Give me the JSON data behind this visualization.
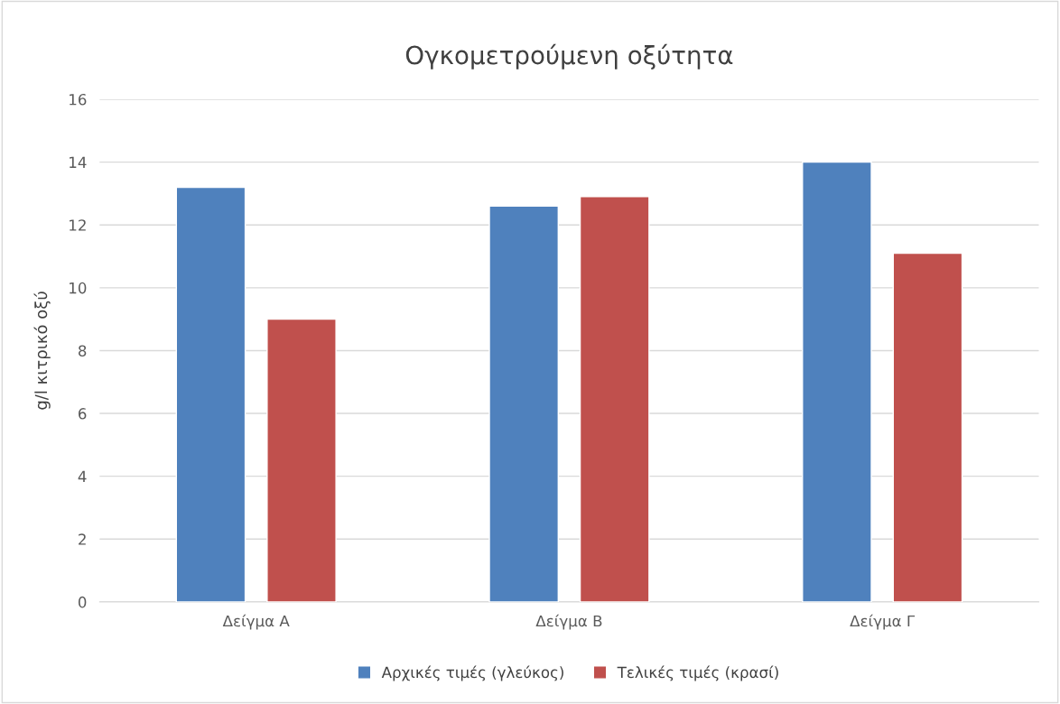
{
  "chart_data": {
    "type": "bar",
    "title": "Ογκομετρούμενη οξύτητα",
    "ylabel": "g/l κιτρικό οξύ",
    "categories": [
      "Δείγμα Α",
      "Δείγμα Β",
      "Δείγμα Γ"
    ],
    "series": [
      {
        "name": "Αρχικές τιμές (γλεύκος)",
        "color": "#4f81bd",
        "values": [
          13.2,
          12.6,
          14.0
        ]
      },
      {
        "name": "Τελικές τιμές (κρασί)",
        "color": "#c0504d",
        "values": [
          9.0,
          12.9,
          11.1
        ]
      }
    ],
    "ylim": [
      0,
      16
    ],
    "yticks": [
      0,
      2,
      4,
      6,
      8,
      10,
      12,
      14,
      16
    ],
    "grid": "y",
    "legend": "bottom"
  }
}
